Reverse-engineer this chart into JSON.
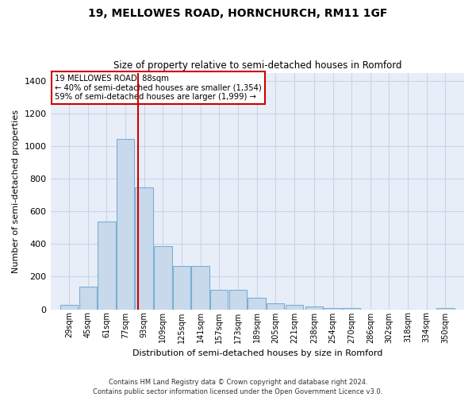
{
  "title": "19, MELLOWES ROAD, HORNCHURCH, RM11 1GF",
  "subtitle": "Size of property relative to semi-detached houses in Romford",
  "xlabel": "Distribution of semi-detached houses by size in Romford",
  "ylabel": "Number of semi-detached properties",
  "footer_line1": "Contains HM Land Registry data © Crown copyright and database right 2024.",
  "footer_line2": "Contains public sector information licensed under the Open Government Licence v3.0.",
  "annotation_line1": "19 MELLOWES ROAD: 88sqm",
  "annotation_line2": "← 40% of semi-detached houses are smaller (1,354)",
  "annotation_line3": "59% of semi-detached houses are larger (1,999) →",
  "vline_color": "#cc0000",
  "bar_color": "#c8d9ec",
  "bar_edge_color": "#7aafd4",
  "grid_color": "#c8d4e8",
  "background_color": "#e8eef8",
  "ann_box_color": "white",
  "ann_box_edge": "#cc0000",
  "categories": [
    29,
    45,
    61,
    77,
    93,
    109,
    125,
    141,
    157,
    173,
    189,
    205,
    221,
    238,
    254,
    270,
    286,
    302,
    318,
    334,
    350
  ],
  "bin_width": 16,
  "values": [
    25,
    140,
    540,
    1045,
    750,
    390,
    265,
    265,
    120,
    120,
    70,
    35,
    25,
    15,
    8,
    8,
    0,
    0,
    0,
    0,
    8
  ],
  "ylim": [
    0,
    1450
  ],
  "yticks": [
    0,
    200,
    400,
    600,
    800,
    1000,
    1200,
    1400
  ],
  "tick_labels": [
    "29sqm",
    "45sqm",
    "61sqm",
    "77sqm",
    "93sqm",
    "109sqm",
    "125sqm",
    "141sqm",
    "157sqm",
    "173sqm",
    "189sqm",
    "205sqm",
    "221sqm",
    "238sqm",
    "254sqm",
    "270sqm",
    "286sqm",
    "302sqm",
    "318sqm",
    "334sqm",
    "350sqm"
  ],
  "vline_x": 88,
  "figsize": [
    6.0,
    5.0
  ],
  "dpi": 100
}
